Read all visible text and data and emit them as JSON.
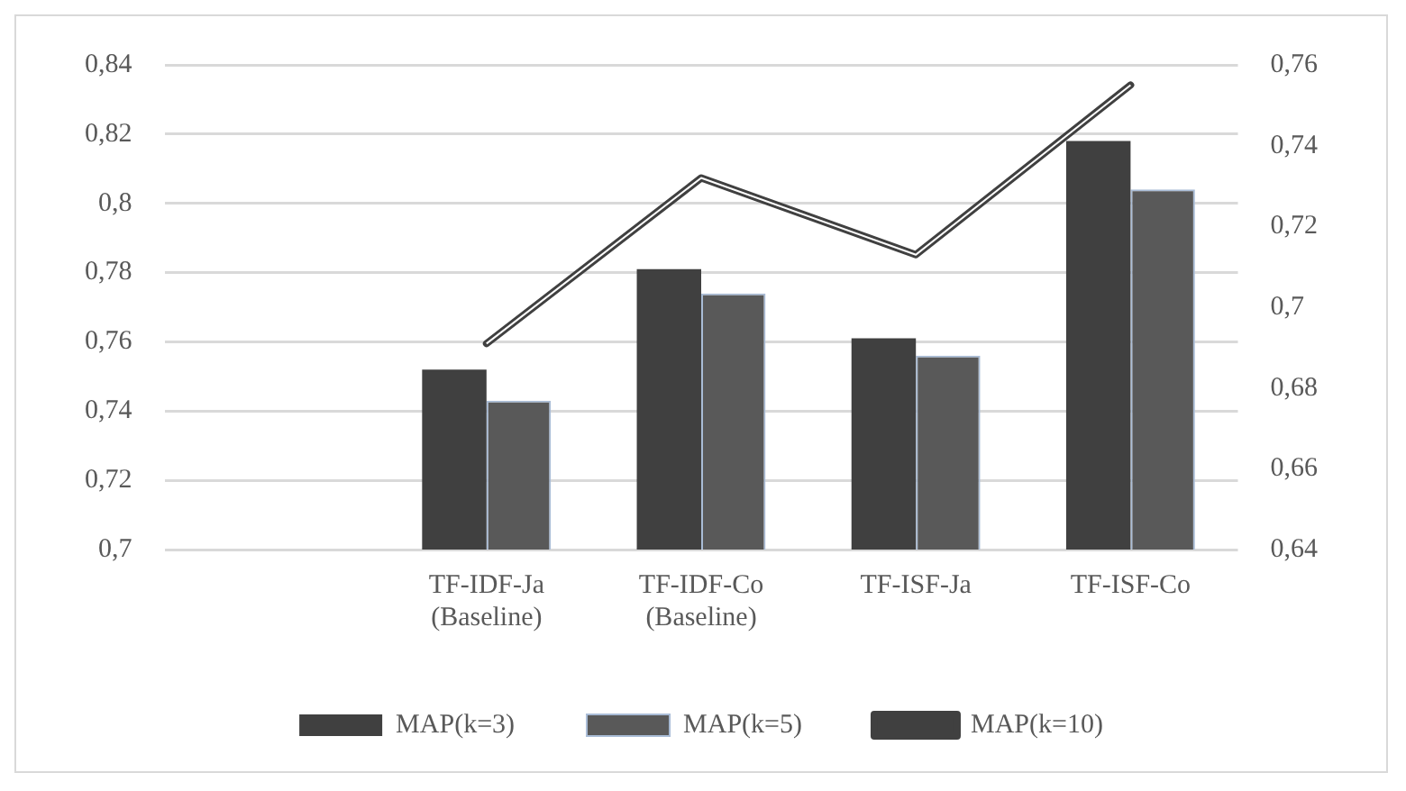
{
  "chart_data": {
    "type": "bar",
    "categories": [
      null,
      "TF-IDF-Ja\n(Baseline)",
      "TF-IDF-Co\n(Baseline)",
      "TF-ISF-Ja",
      "TF-ISF-Co"
    ],
    "series": [
      {
        "name": "MAP(k=3)",
        "color": "#404040",
        "values": [
          null,
          0.752,
          0.781,
          0.761,
          0.818
        ]
      },
      {
        "name": "MAP(k=5)",
        "color": "#595959",
        "values": [
          null,
          0.743,
          0.774,
          0.756,
          0.804
        ]
      },
      {
        "name": "MAP(k=10)",
        "type": "line",
        "axis": "y2",
        "color": "#404040",
        "marker": "none",
        "values": [
          null,
          0.691,
          0.732,
          0.713,
          0.755
        ]
      }
    ],
    "ylim": [
      0.7,
      0.84
    ],
    "yticks": [
      {
        "value": 0.7,
        "label": "0,7"
      },
      {
        "value": 0.72,
        "label": "0,72"
      },
      {
        "value": 0.74,
        "label": "0,74"
      },
      {
        "value": 0.76,
        "label": "0,76"
      },
      {
        "value": 0.78,
        "label": "0,78"
      },
      {
        "value": 0.8,
        "label": "0,8"
      },
      {
        "value": 0.82,
        "label": "0,82"
      },
      {
        "value": 0.84,
        "label": "0,84"
      }
    ],
    "y2lim": [
      0.64,
      0.76
    ],
    "y2ticks": [
      {
        "value": 0.64,
        "label": "0,64"
      },
      {
        "value": 0.66,
        "label": "0,66"
      },
      {
        "value": 0.68,
        "label": "0,68"
      },
      {
        "value": 0.7,
        "label": "0,7"
      },
      {
        "value": 0.72,
        "label": "0,72"
      },
      {
        "value": 0.74,
        "label": "0,74"
      },
      {
        "value": 0.76,
        "label": "0,76"
      }
    ],
    "grid": "y",
    "legend": "bottom"
  }
}
